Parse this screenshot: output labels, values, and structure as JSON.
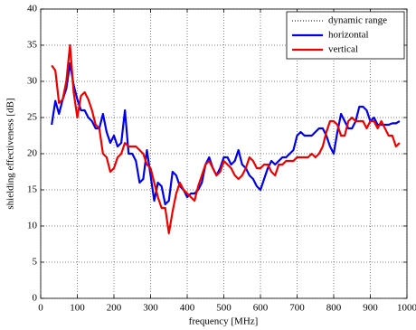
{
  "chart_data": {
    "type": "line",
    "xlabel": "frequency [MHz]",
    "ylabel": "shielding effectiveness [dB]",
    "x": [
      30,
      40,
      50,
      60,
      70,
      80,
      90,
      100,
      110,
      120,
      130,
      140,
      150,
      160,
      170,
      180,
      190,
      200,
      210,
      220,
      230,
      240,
      250,
      260,
      270,
      280,
      290,
      300,
      310,
      320,
      330,
      340,
      350,
      360,
      370,
      380,
      390,
      400,
      410,
      420,
      430,
      440,
      450,
      460,
      470,
      480,
      490,
      500,
      510,
      520,
      530,
      540,
      550,
      560,
      570,
      580,
      590,
      600,
      610,
      620,
      630,
      640,
      650,
      660,
      670,
      680,
      690,
      700,
      710,
      720,
      730,
      740,
      750,
      760,
      770,
      780,
      790,
      800,
      810,
      820,
      830,
      840,
      850,
      860,
      870,
      880,
      890,
      900,
      910,
      920,
      930,
      940,
      950,
      960,
      970,
      980
    ],
    "series": [
      {
        "name": "dynamic range",
        "color": "#000000",
        "style": "dotted",
        "values": [
          null,
          null,
          null,
          null,
          null,
          null,
          null,
          null,
          null,
          null,
          null,
          null,
          null,
          null,
          null,
          null,
          null,
          null,
          null,
          null,
          null,
          null,
          null,
          null,
          null,
          null,
          null,
          null,
          null,
          null,
          null,
          null,
          null,
          null,
          null,
          null,
          null,
          null,
          null,
          null,
          null,
          null,
          null,
          null,
          null,
          null,
          null,
          null,
          null,
          null,
          null,
          null,
          null,
          null,
          null,
          null,
          null,
          null,
          null,
          null,
          null,
          null,
          null,
          null,
          null,
          null,
          null,
          null,
          null,
          null,
          null,
          null,
          null,
          null,
          null,
          null,
          null,
          null,
          null,
          null,
          null,
          null,
          null,
          null,
          null,
          null,
          null,
          null,
          null,
          null,
          null,
          null,
          null,
          null,
          null,
          null
        ]
      },
      {
        "name": "horizontal",
        "color": "#0000ee",
        "style": "solid",
        "values": [
          24,
          27.3,
          25.5,
          27.5,
          29,
          32.5,
          29.5,
          27.5,
          26,
          26,
          25,
          24.5,
          23.5,
          23.5,
          25.5,
          23,
          21.5,
          22.5,
          21,
          21.5,
          26,
          20,
          20,
          19,
          16,
          16.5,
          20.5,
          17,
          13.5,
          16,
          15.5,
          13,
          13.5,
          17.5,
          17,
          15.5,
          15,
          14,
          14.5,
          14.5,
          15,
          16,
          18.5,
          19.5,
          18,
          17,
          18,
          19.5,
          19.5,
          18.5,
          19,
          20.5,
          18.5,
          18,
          17,
          16.5,
          15.5,
          15,
          16.5,
          18,
          19,
          18.5,
          19,
          19.5,
          19.5,
          20,
          20.5,
          22.5,
          23,
          22.5,
          22.5,
          22.5,
          23,
          23.5,
          23.5,
          22.5,
          21,
          20,
          23,
          25.5,
          24.5,
          23.5,
          23.5,
          24.5,
          26.5,
          26.5,
          26,
          24.5,
          25,
          24,
          24,
          24,
          24,
          24.2,
          24.2,
          24.5
        ]
      },
      {
        "name": "vertical",
        "color": "#ee0000",
        "style": "solid",
        "values": [
          32.2,
          31.5,
          27,
          27.5,
          30,
          35,
          28.5,
          25,
          28,
          28.5,
          27.5,
          26,
          24,
          23.5,
          20,
          19.5,
          17.5,
          18,
          19.5,
          20,
          21.5,
          21,
          21,
          21,
          20.5,
          20,
          18.5,
          18,
          16,
          14,
          12.5,
          12.5,
          9,
          12,
          14.5,
          16,
          15,
          14.5,
          14,
          13.5,
          15.5,
          17,
          18.5,
          19,
          18,
          17,
          17.5,
          19,
          18.5,
          18,
          17,
          16.5,
          17,
          18,
          19.5,
          19,
          18,
          18,
          18.5,
          18.5,
          17.5,
          17,
          18.5,
          18.5,
          19,
          19,
          19,
          19.5,
          19.5,
          19.5,
          19.5,
          20,
          19.5,
          20,
          21,
          23,
          24.5,
          24.5,
          24,
          22.5,
          22.5,
          24.5,
          25,
          24.5,
          24.5,
          24.5,
          23.5,
          24.5,
          24.5,
          23.5,
          24.5,
          23.5,
          22.5,
          22.5,
          21,
          21.5
        ]
      }
    ],
    "xlim": [
      0,
      1000
    ],
    "xticks": [
      0,
      100,
      200,
      300,
      400,
      500,
      600,
      700,
      800,
      900,
      1000
    ],
    "ylim": [
      0,
      40
    ],
    "yticks": [
      0,
      5,
      10,
      15,
      20,
      25,
      30,
      35,
      40
    ],
    "grid": true,
    "legend": "upper right"
  }
}
